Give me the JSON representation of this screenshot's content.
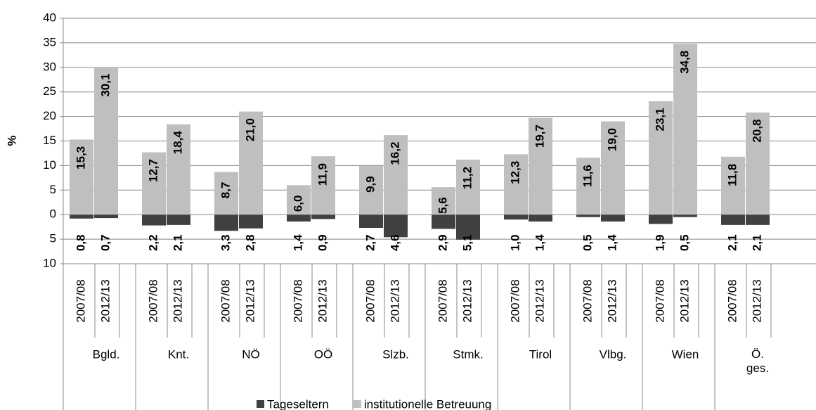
{
  "chart_data": {
    "type": "diverging-bar",
    "ylabel": "%",
    "ylim": [
      -10,
      40
    ],
    "yticks": [
      {
        "value": -10,
        "label": "10"
      },
      {
        "value": -5,
        "label": "5"
      },
      0,
      5,
      10,
      15,
      20,
      25,
      30,
      35,
      40
    ],
    "grid": true,
    "legend": "bottom",
    "groups": [
      "Bgld.",
      "Knt.",
      "NÖ",
      "OÖ",
      "Slzb.",
      "Stmk.",
      "Tirol",
      "Vlbg.",
      "Wien",
      "Ö. ges."
    ],
    "categories": [
      "2007/08",
      "2012/13"
    ],
    "series": [
      {
        "name": "Tageseltern",
        "color": "#404040",
        "direction": "down",
        "values": [
          [
            0.8,
            0.7
          ],
          [
            2.2,
            2.1
          ],
          [
            3.3,
            2.8
          ],
          [
            1.4,
            0.9
          ],
          [
            2.7,
            4.6
          ],
          [
            2.9,
            5.1
          ],
          [
            1.0,
            1.4
          ],
          [
            0.5,
            1.4
          ],
          [
            1.9,
            0.5
          ],
          [
            2.1,
            2.1
          ]
        ],
        "value_labels": [
          [
            "0,8",
            "0,7"
          ],
          [
            "2,2",
            "2,1"
          ],
          [
            "3,3",
            "2,8"
          ],
          [
            "1,4",
            "0,9"
          ],
          [
            "2,7",
            "4,6"
          ],
          [
            "2,9",
            "5,1"
          ],
          [
            "1,0",
            "1,4"
          ],
          [
            "0,5",
            "1,4"
          ],
          [
            "1,9",
            "0,5"
          ],
          [
            "2,1",
            "2,1"
          ]
        ]
      },
      {
        "name": "institutionelle Betreuung",
        "color": "#bfbfbf",
        "direction": "up",
        "values": [
          [
            15.3,
            30.1
          ],
          [
            12.7,
            18.4
          ],
          [
            8.7,
            21.0
          ],
          [
            6.0,
            11.9
          ],
          [
            9.9,
            16.2
          ],
          [
            5.6,
            11.2
          ],
          [
            12.3,
            19.7
          ],
          [
            11.6,
            19.0
          ],
          [
            23.1,
            34.8
          ],
          [
            11.8,
            20.8
          ]
        ],
        "value_labels": [
          [
            "15,3",
            "30,1"
          ],
          [
            "12,7",
            "18,4"
          ],
          [
            "8,7",
            "21,0"
          ],
          [
            "6,0",
            "11,9"
          ],
          [
            "9,9",
            "16,2"
          ],
          [
            "5,6",
            "11,2"
          ],
          [
            "12,3",
            "19,7"
          ],
          [
            "11,6",
            "19,0"
          ],
          [
            "23,1",
            "34,8"
          ],
          [
            "11,8",
            "20,8"
          ]
        ]
      }
    ]
  }
}
